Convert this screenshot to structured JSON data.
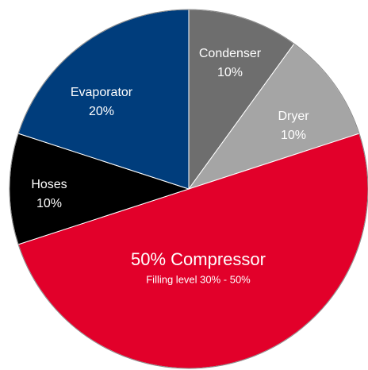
{
  "chart_data": {
    "type": "pie",
    "categories": [
      "Condenser",
      "Dryer",
      "Compressor",
      "Hoses",
      "Evaporator"
    ],
    "values": [
      10,
      10,
      50,
      10,
      20
    ],
    "value_labels": [
      "10%",
      "10%",
      "50%",
      "10%",
      "20%"
    ],
    "colors": [
      "#6e6e6e",
      "#a5a5a5",
      "#e2002a",
      "#000000",
      "#003d7c"
    ],
    "annotation": "Filling level 30% - 50%"
  }
}
